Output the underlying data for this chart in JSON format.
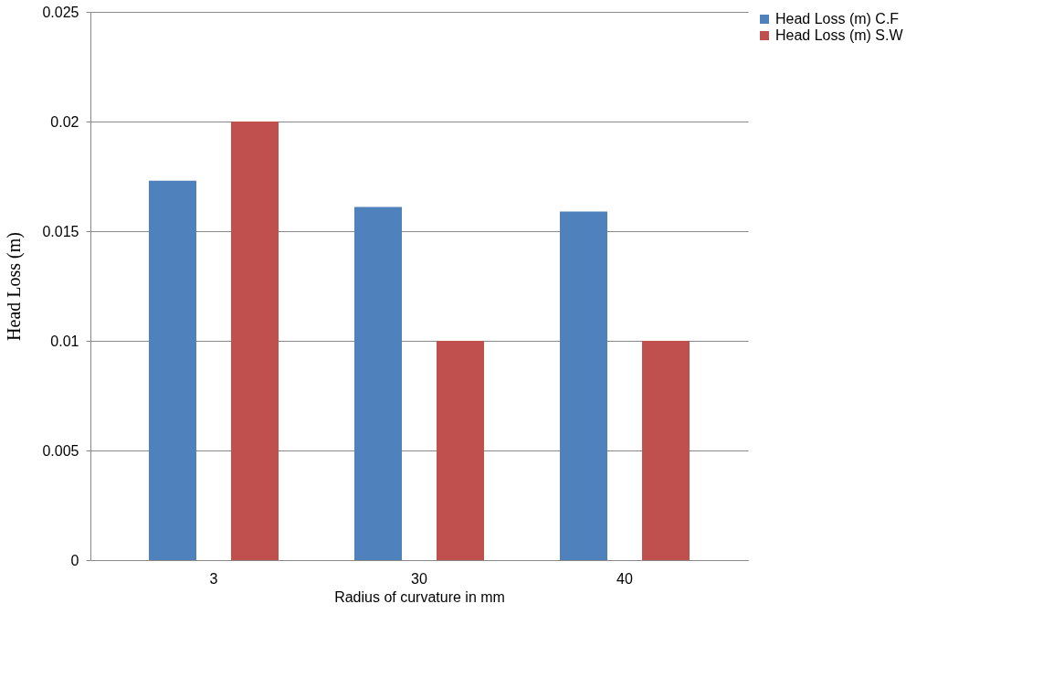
{
  "chart_data": {
    "type": "bar",
    "xlabel": "Radius of curvature in mm",
    "ylabel": "Head Loss (m)",
    "categories": [
      "3",
      "30",
      "40"
    ],
    "series": [
      {
        "name": "Head Loss (m) C.F",
        "color": "#4f81bd",
        "values": [
          0.0173,
          0.0161,
          0.0159
        ]
      },
      {
        "name": "Head Loss (m) S.W",
        "color": "#c0504d",
        "values": [
          0.02,
          0.01,
          0.01
        ]
      }
    ],
    "ylim": [
      0,
      0.025
    ],
    "yticks": [
      0,
      0.005,
      0.01,
      0.015,
      0.02,
      0.025
    ],
    "grid": "y",
    "legend": "right"
  }
}
